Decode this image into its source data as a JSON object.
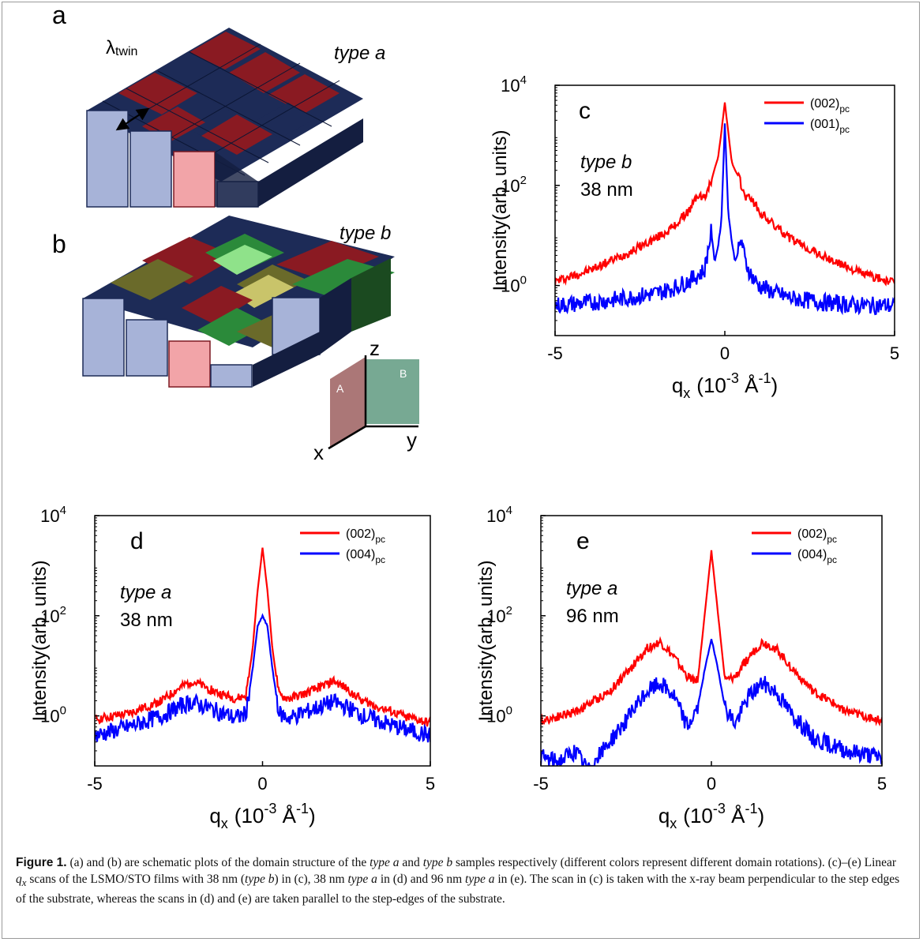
{
  "schematics": {
    "a": {
      "panel_label": "a",
      "type_label": "type a",
      "lambda_main": "λ",
      "lambda_sub": "twin"
    },
    "b": {
      "panel_label": "b",
      "type_label": "type b"
    },
    "axes_inset": {
      "x": "x",
      "y": "y",
      "z": "z",
      "plane_a": "A",
      "plane_b": "B"
    }
  },
  "chart_data": [
    {
      "type": "line",
      "panel": "c",
      "annotation_1": "type b",
      "annotation_2": "38 nm",
      "xlabel_main": "q",
      "xlabel_sub": "x",
      "xlabel_unit_open": "(10",
      "xlabel_unit_exp": "-3",
      "xlabel_unit_mid": " Å",
      "xlabel_unit_exp2": "-1",
      "xlabel_unit_close": ")",
      "ylabel": "Intensity(arb. units)",
      "xlim": [
        -5,
        5
      ],
      "ylim": [
        0.1,
        10000
      ],
      "yscale": "log",
      "xticks": [
        "-5",
        "0",
        "5"
      ],
      "yticks": [
        {
          "base": "10",
          "exp": "0",
          "value": 1
        },
        {
          "base": "10",
          "exp": "2",
          "value": 100
        },
        {
          "base": "10",
          "exp": "4",
          "value": 10000
        }
      ],
      "legend_position": "top-right",
      "series": [
        {
          "name_main": "(002)",
          "name_sub": "pc",
          "color": "#ff0000",
          "x": [
            -5,
            -4,
            -3,
            -2,
            -1.5,
            -1,
            -0.8,
            -0.6,
            -0.4,
            -0.3,
            -0.2,
            -0.1,
            0,
            0.1,
            0.2,
            0.3,
            0.4,
            0.6,
            0.8,
            1,
            1.5,
            2,
            3,
            4,
            5
          ],
          "y": [
            1.2,
            2,
            4,
            9,
            15,
            35,
            65,
            55,
            120,
            220,
            350,
            1200,
            4500,
            1200,
            300,
            200,
            150,
            60,
            55,
            30,
            15,
            8,
            3.5,
            1.8,
            1.1
          ]
        },
        {
          "name_main": "(001)",
          "name_sub": "pc",
          "color": "#0000ff",
          "x": [
            -5,
            -4,
            -3,
            -2,
            -1.5,
            -1,
            -0.6,
            -0.4,
            -0.3,
            -0.2,
            -0.1,
            0,
            0.1,
            0.2,
            0.3,
            0.5,
            0.6,
            0.8,
            1,
            1.5,
            2,
            3,
            4,
            5
          ],
          "y": [
            0.4,
            0.45,
            0.55,
            0.7,
            0.9,
            1.3,
            2,
            12,
            3,
            6,
            20,
            1800,
            30,
            8,
            3,
            8,
            3,
            1.5,
            1,
            0.7,
            0.55,
            0.45,
            0.4,
            0.4
          ]
        }
      ]
    },
    {
      "type": "line",
      "panel": "d",
      "annotation_1": "type a",
      "annotation_2": "38 nm",
      "xlabel_main": "q",
      "xlabel_sub": "x",
      "xlabel_unit_open": "(10",
      "xlabel_unit_exp": "-3",
      "xlabel_unit_mid": " Å",
      "xlabel_unit_exp2": "-1",
      "xlabel_unit_close": ")",
      "ylabel": "Intensity(arb. units)",
      "xlim": [
        -5,
        5
      ],
      "ylim": [
        0.1,
        10000
      ],
      "yscale": "log",
      "xticks": [
        "-5",
        "0",
        "5"
      ],
      "yticks": [
        {
          "base": "10",
          "exp": "0",
          "value": 1
        },
        {
          "base": "10",
          "exp": "2",
          "value": 100
        },
        {
          "base": "10",
          "exp": "4",
          "value": 10000
        }
      ],
      "legend_position": "top-right",
      "series": [
        {
          "name_main": "(002)",
          "name_sub": "pc",
          "color": "#ff0000",
          "x": [
            -5,
            -4,
            -3,
            -2.5,
            -2.1,
            -1.8,
            -1.3,
            -0.8,
            -0.5,
            -0.3,
            -0.15,
            0,
            0.15,
            0.3,
            0.5,
            0.8,
            1.3,
            1.8,
            2.1,
            2.5,
            3,
            4,
            5
          ],
          "y": [
            0.85,
            1.1,
            2,
            3.5,
            5,
            4,
            2.8,
            2.2,
            2.5,
            20,
            300,
            2300,
            300,
            20,
            2.5,
            2.2,
            2.8,
            4,
            5,
            3.5,
            2,
            1.1,
            0.7
          ]
        },
        {
          "name_main": "(004)",
          "name_sub": "pc",
          "color": "#0000ff",
          "x": [
            -5,
            -4,
            -3,
            -2.5,
            -2.1,
            -1.8,
            -1.3,
            -0.8,
            -0.5,
            -0.3,
            -0.15,
            0,
            0.15,
            0.3,
            0.5,
            0.8,
            1.3,
            1.8,
            2.1,
            2.5,
            3,
            4,
            5
          ],
          "y": [
            0.4,
            0.6,
            1,
            1.5,
            1.9,
            1.6,
            1.2,
            0.9,
            1.1,
            8,
            60,
            100,
            60,
            8,
            1.1,
            0.9,
            1.2,
            1.6,
            1.9,
            1.5,
            1,
            0.6,
            0.4
          ]
        }
      ]
    },
    {
      "type": "line",
      "panel": "e",
      "annotation_1": "type a",
      "annotation_2": "96 nm",
      "xlabel_main": "q",
      "xlabel_sub": "x",
      "xlabel_unit_open": "(10",
      "xlabel_unit_exp": "-3",
      "xlabel_unit_mid": " Å",
      "xlabel_unit_exp2": "-1",
      "xlabel_unit_close": ")",
      "ylabel": "Intensity(arb. units)",
      "xlim": [
        -5,
        5
      ],
      "ylim": [
        0.1,
        10000
      ],
      "yscale": "log",
      "xticks": [
        "-5",
        "0",
        "5"
      ],
      "yticks": [
        {
          "base": "10",
          "exp": "0",
          "value": 1
        },
        {
          "base": "10",
          "exp": "2",
          "value": 100
        },
        {
          "base": "10",
          "exp": "4",
          "value": 10000
        }
      ],
      "legend_position": "top-right",
      "series": [
        {
          "name_main": "(002)",
          "name_sub": "pc",
          "color": "#ff0000",
          "x": [
            -5,
            -4,
            -3,
            -2.3,
            -1.9,
            -1.5,
            -1.1,
            -0.7,
            -0.4,
            -0.2,
            0,
            0.2,
            0.4,
            0.7,
            1.1,
            1.5,
            1.9,
            2.3,
            3,
            4,
            5
          ],
          "y": [
            0.8,
            1.2,
            3,
            10,
            22,
            30,
            15,
            6,
            5,
            100,
            2000,
            100,
            5,
            6,
            15,
            30,
            22,
            10,
            3,
            1.2,
            0.8
          ]
        },
        {
          "name_main": "(004)",
          "name_sub": "pc",
          "color": "#0000ff",
          "x": [
            -5,
            -4.5,
            -4,
            -3.6,
            -3,
            -2.3,
            -1.9,
            -1.5,
            -1.1,
            -0.7,
            -0.4,
            -0.2,
            0,
            0.2,
            0.4,
            0.7,
            1.1,
            1.5,
            1.9,
            2.3,
            3,
            4,
            5
          ],
          "y": [
            0.15,
            0.12,
            0.2,
            0.08,
            0.3,
            1.2,
            3,
            4.5,
            2.5,
            0.6,
            1.5,
            8,
            35,
            8,
            1.5,
            0.7,
            2.5,
            4.5,
            3,
            1.2,
            0.35,
            0.2,
            0.15
          ]
        }
      ]
    }
  ],
  "caption": {
    "label": "Figure 1.",
    "p1": " (a) and (b) are schematic plots of the domain structure of the ",
    "i1": "type a",
    "p2": " and ",
    "i2": "type b",
    "p3": " samples respectively (different colors represent different domain rotations). (c)–(e) Linear ",
    "i3": "q",
    "sub3": "x",
    "p4": " scans of the LSMO/STO films with 38 nm (",
    "i4": "type b",
    "p5": ") in (c), 38 nm ",
    "i5": "type a",
    "p6": " in (d) and 96 nm ",
    "i6": "type a",
    "p7": " in (e). The scan in (c) is taken with the x-ray beam perpendicular to the step edges of the substrate, whereas the scans in (d) and (e) are taken parallel to the step-edges of the substrate."
  }
}
